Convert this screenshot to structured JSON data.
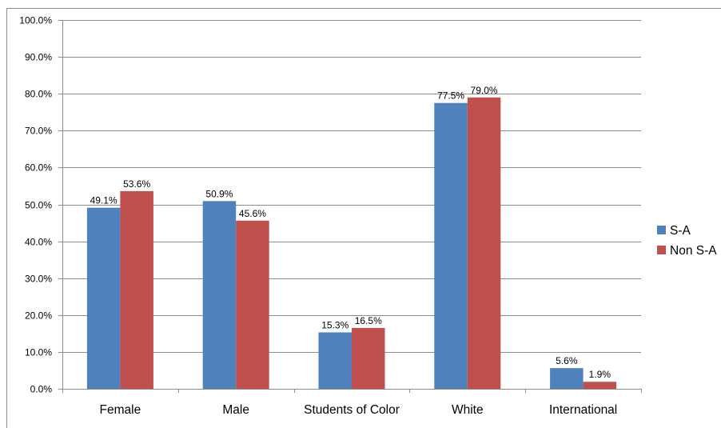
{
  "chart_data": {
    "type": "bar",
    "categories": [
      "Female",
      "Male",
      "Students of Color",
      "White",
      "International"
    ],
    "series": [
      {
        "name": "S-A",
        "color": "#4F81BD",
        "values": [
          49.1,
          50.9,
          15.3,
          77.5,
          5.6
        ],
        "labels": [
          "49.1%",
          "50.9%",
          "15.3%",
          "77.5%",
          "5.6%"
        ]
      },
      {
        "name": "Non S-A",
        "color": "#C0504D",
        "values": [
          53.6,
          45.6,
          16.5,
          79.0,
          1.9
        ],
        "labels": [
          "53.6%",
          "45.6%",
          "16.5%",
          "79.0%",
          "1.9%"
        ]
      }
    ],
    "yticks": [
      "0.0%",
      "10.0%",
      "20.0%",
      "30.0%",
      "40.0%",
      "50.0%",
      "60.0%",
      "70.0%",
      "80.0%",
      "90.0%",
      "100.0%"
    ],
    "ylim": [
      0,
      100
    ],
    "grid": true,
    "legend_position": "right"
  }
}
